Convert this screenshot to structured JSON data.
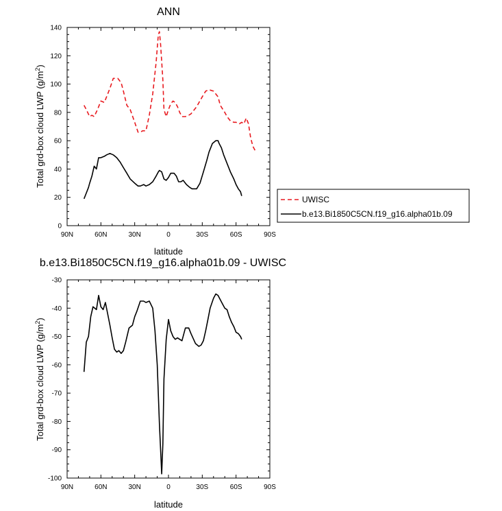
{
  "chart_data": [
    {
      "type": "line",
      "title": "ANN",
      "xlabel": "latitude",
      "ylabel_parts": [
        "Total grd-box cloud LWP (g/m",
        "2",
        ")"
      ],
      "xlim": [
        90,
        -90
      ],
      "ylim": [
        0,
        140
      ],
      "x_ticks": [
        90,
        60,
        30,
        0,
        -30,
        -60,
        -90
      ],
      "x_tick_labels": [
        "90N",
        "60N",
        "30N",
        "0",
        "30S",
        "60S",
        "90S"
      ],
      "y_ticks": [
        0,
        20,
        40,
        60,
        80,
        100,
        120,
        140
      ],
      "y_tick_labels": [
        "0",
        "20",
        "40",
        "60",
        "80",
        "100",
        "120",
        "140"
      ],
      "grid": false,
      "legend_position": "right",
      "series": [
        {
          "name": "UWISC",
          "color": "#e8191e",
          "dash": "dashed",
          "x": [
            75,
            73,
            70,
            68,
            66,
            63,
            60,
            57,
            55,
            52,
            49,
            45,
            42,
            40,
            37,
            34,
            30,
            27,
            25,
            23,
            20,
            17,
            14,
            11,
            9,
            8,
            7,
            5,
            4,
            2,
            0,
            -2,
            -4,
            -6,
            -8,
            -10,
            -12,
            -15,
            -18,
            -20,
            -25,
            -30,
            -33,
            -36,
            -40,
            -44,
            -46,
            -50,
            -52,
            -55,
            -58,
            -60,
            -63,
            -65,
            -67,
            -69,
            -71,
            -73,
            -75,
            -77
          ],
          "y": [
            85,
            82,
            77,
            78,
            77,
            82,
            88,
            87,
            91,
            97,
            104,
            104,
            101,
            95,
            85,
            82,
            73,
            66,
            66,
            67,
            67,
            78,
            93,
            115,
            135,
            137,
            128,
            103,
            82,
            77,
            82,
            86,
            88,
            87,
            84,
            80,
            77,
            77,
            78,
            79,
            84,
            91,
            95,
            96,
            95,
            91,
            85,
            80,
            77,
            74,
            73,
            73,
            72,
            73,
            72,
            76,
            72,
            62,
            56,
            53
          ]
        },
        {
          "name": "b.e13.Bi1850C5CN.f19_g16.alpha01b.09",
          "color": "#000000",
          "dash": "solid",
          "x": [
            75,
            73,
            71,
            70,
            68,
            66,
            64,
            62,
            60,
            57,
            55,
            52,
            49,
            46,
            43,
            40,
            37,
            34,
            30,
            27,
            25,
            22,
            20,
            17,
            14,
            11,
            9,
            8,
            6,
            4,
            2,
            0,
            -2,
            -5,
            -7,
            -9,
            -11,
            -13,
            -16,
            -19,
            -21,
            -25,
            -28,
            -31,
            -34,
            -36,
            -39,
            -42,
            -44,
            -45,
            -47,
            -49,
            -52,
            -55,
            -58,
            -60,
            -62,
            -63,
            -64,
            -65
          ],
          "y": [
            19,
            23,
            27,
            30,
            35,
            42,
            40,
            48,
            48,
            49,
            50,
            51,
            50,
            48,
            45,
            41,
            37,
            33,
            30,
            28,
            28,
            29,
            28,
            29,
            31,
            35,
            38,
            39,
            38,
            33,
            32,
            34,
            37,
            37,
            35,
            31,
            31,
            32,
            29,
            27,
            26,
            26,
            30,
            38,
            46,
            52,
            58,
            60,
            60,
            58,
            55,
            50,
            44,
            38,
            33,
            29,
            26,
            25,
            24,
            21
          ]
        }
      ]
    },
    {
      "type": "line",
      "title": "b.e13.Bi1850C5CN.f19_g16.alpha01b.09 - UWISC",
      "xlabel": "latitude",
      "ylabel_parts": [
        "Total grd-box cloud LWP (g/m",
        "2",
        ")"
      ],
      "xlim": [
        90,
        -90
      ],
      "ylim": [
        -100,
        -30
      ],
      "x_ticks": [
        90,
        60,
        30,
        0,
        -30,
        -60,
        -90
      ],
      "x_tick_labels": [
        "90N",
        "60N",
        "30N",
        "0",
        "30S",
        "60S",
        "90S"
      ],
      "y_ticks": [
        -100,
        -90,
        -80,
        -70,
        -60,
        -50,
        -40,
        -30
      ],
      "y_tick_labels": [
        "-100",
        "-90",
        "-80",
        "-70",
        "-60",
        "-50",
        "-40",
        "-30"
      ],
      "grid": false,
      "series": [
        {
          "color": "#000000",
          "dash": "solid",
          "x": [
            75,
            73,
            71,
            69,
            67,
            64,
            62,
            60,
            58,
            56,
            54,
            52,
            50,
            48,
            46,
            44,
            42,
            40,
            38,
            35,
            32,
            30,
            28,
            25,
            22,
            20,
            17,
            14,
            12,
            10,
            8,
            6,
            5,
            4,
            2,
            0,
            -2,
            -4,
            -6,
            -8,
            -10,
            -12,
            -15,
            -18,
            -20,
            -24,
            -27,
            -29,
            -31,
            -33,
            -35,
            -37,
            -40,
            -42,
            -44,
            -46,
            -48,
            -50,
            -52,
            -54,
            -56,
            -58,
            -60,
            -62,
            -64,
            -65
          ],
          "y": [
            -62.5,
            -52,
            -50,
            -43,
            -39.5,
            -40.5,
            -35.5,
            -39.5,
            -40.5,
            -38,
            -42,
            -46,
            -50.5,
            -54.5,
            -55.5,
            -55,
            -56,
            -55,
            -52,
            -47,
            -46,
            -43,
            -41,
            -37.5,
            -37.5,
            -38,
            -37.5,
            -40,
            -48,
            -60,
            -81,
            -98.5,
            -88,
            -65,
            -51,
            -44,
            -48,
            -50,
            -51,
            -50.5,
            -51,
            -51.5,
            -47,
            -47,
            -49,
            -52.5,
            -53.5,
            -53,
            -51.5,
            -48,
            -44,
            -40,
            -36.5,
            -35,
            -35.5,
            -37,
            -38.5,
            -40,
            -40.5,
            -43,
            -45,
            -46.5,
            -48.5,
            -49,
            -50,
            -51
          ]
        }
      ]
    }
  ]
}
